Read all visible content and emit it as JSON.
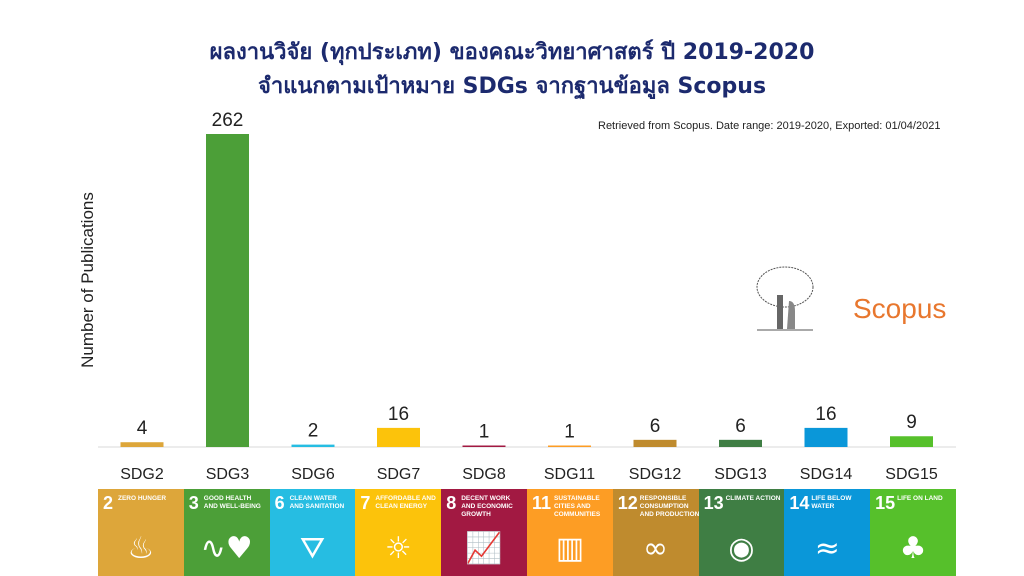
{
  "title_line1": "ผลงานวิจัย (ทุกประเภท) ของคณะวิทยาศาสตร์ ปี 2019-2020",
  "title_line2": "จำแนกตามเป้าหมาย SDGs จากฐานข้อมูล Scopus",
  "note": "Retrieved from Scopus. Date range: 2019-2020, Exported: 01/04/2021",
  "logo_text": "Scopus",
  "chart_data": {
    "type": "bar",
    "title": "ผลงานวิจัย (ทุกประเภท) ของคณะวิทยาศาสตร์ ปี 2019-2020 จำแนกตามเป้าหมาย SDGs จากฐานข้อมูล Scopus",
    "xlabel": "",
    "ylabel": "Number of Publications",
    "categories": [
      "SDG2",
      "SDG3",
      "SDG6",
      "SDG7",
      "SDG8",
      "SDG11",
      "SDG12",
      "SDG13",
      "SDG14",
      "SDG15"
    ],
    "values": [
      4,
      262,
      2,
      16,
      1,
      1,
      6,
      6,
      16,
      9
    ],
    "colors": [
      "#dda63a",
      "#4c9f38",
      "#26bde2",
      "#fcc30b",
      "#a21942",
      "#fd9d24",
      "#bf8b2e",
      "#3f7e44",
      "#0a97d9",
      "#56c02b"
    ],
    "ylim": [
      0,
      262
    ],
    "grid": false
  },
  "tiles": [
    {
      "num": "2",
      "label": "ZERO HUNGER",
      "icon": "bowl-icon",
      "glyph": "♨"
    },
    {
      "num": "3",
      "label": "GOOD HEALTH AND WELL-BEING",
      "icon": "heartbeat-icon",
      "glyph": "∿♥"
    },
    {
      "num": "6",
      "label": "CLEAN WATER AND SANITATION",
      "icon": "water-glass-icon",
      "glyph": "⛛"
    },
    {
      "num": "7",
      "label": "AFFORDABLE AND CLEAN ENERGY",
      "icon": "sun-power-icon",
      "glyph": "☼"
    },
    {
      "num": "8",
      "label": "DECENT WORK AND ECONOMIC GROWTH",
      "icon": "growth-chart-icon",
      "glyph": "📈"
    },
    {
      "num": "11",
      "label": "SUSTAINABLE CITIES AND COMMUNITIES",
      "icon": "buildings-icon",
      "glyph": "▥"
    },
    {
      "num": "12",
      "label": "RESPONSIBLE CONSUMPTION AND PRODUCTION",
      "icon": "infinity-icon",
      "glyph": "∞"
    },
    {
      "num": "13",
      "label": "CLIMATE ACTION",
      "icon": "eye-globe-icon",
      "glyph": "◉"
    },
    {
      "num": "14",
      "label": "LIFE BELOW WATER",
      "icon": "fish-icon",
      "glyph": "≈"
    },
    {
      "num": "15",
      "label": "LIFE ON LAND",
      "icon": "tree-icon",
      "glyph": "♣"
    }
  ]
}
